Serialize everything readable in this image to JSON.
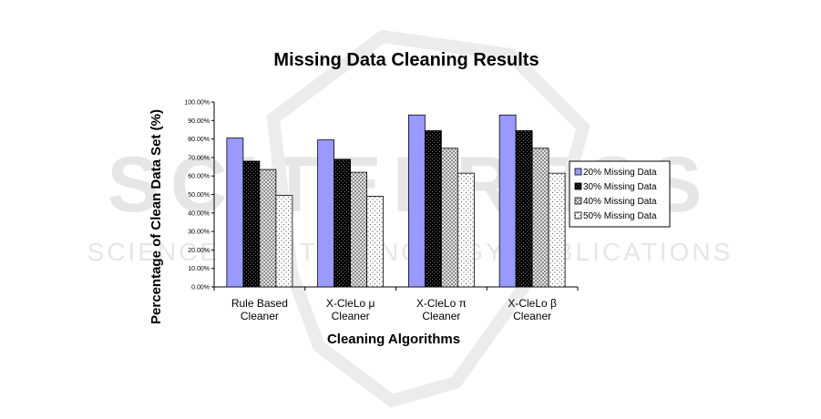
{
  "watermark": {
    "big": "SCITEPRESS",
    "small": "SCIENCE AND TECHNOLOGY PUBLICATIONS"
  },
  "chart_data": {
    "type": "bar",
    "title": "Missing Data Cleaning Results",
    "xlabel": "Cleaning Algorithms",
    "ylabel": "Percentage of Clean Data Set (%)",
    "ylim": [
      0,
      100
    ],
    "yticks": [
      "0.00%",
      "10.00%",
      "20.00%",
      "30.00%",
      "40.00%",
      "50.00%",
      "60.00%",
      "70.00%",
      "80.00%",
      "90.00%",
      "100.00%"
    ],
    "categories": [
      [
        "Rule Based",
        "Cleaner"
      ],
      [
        "X-CleLo μ",
        "Cleaner"
      ],
      [
        "X-CleLo π",
        "Cleaner"
      ],
      [
        "X-CleLo β",
        "Cleaner"
      ]
    ],
    "series": [
      {
        "name": "20% Missing Data",
        "values": [
          80.5,
          79.5,
          93,
          93
        ],
        "color": "#9999ff",
        "pattern": "solid"
      },
      {
        "name": "30% Missing Data",
        "values": [
          68,
          69,
          84.5,
          84.5
        ],
        "color": "#000000",
        "pattern": "checker"
      },
      {
        "name": "40% Missing Data",
        "values": [
          63.5,
          62,
          75,
          75
        ],
        "color": "#cccccc",
        "pattern": "hatch"
      },
      {
        "name": "50% Missing Data",
        "values": [
          49.5,
          49,
          61.5,
          61.5
        ],
        "color": "#ffffff",
        "pattern": "dots"
      }
    ],
    "legend": "right",
    "grid": false
  }
}
